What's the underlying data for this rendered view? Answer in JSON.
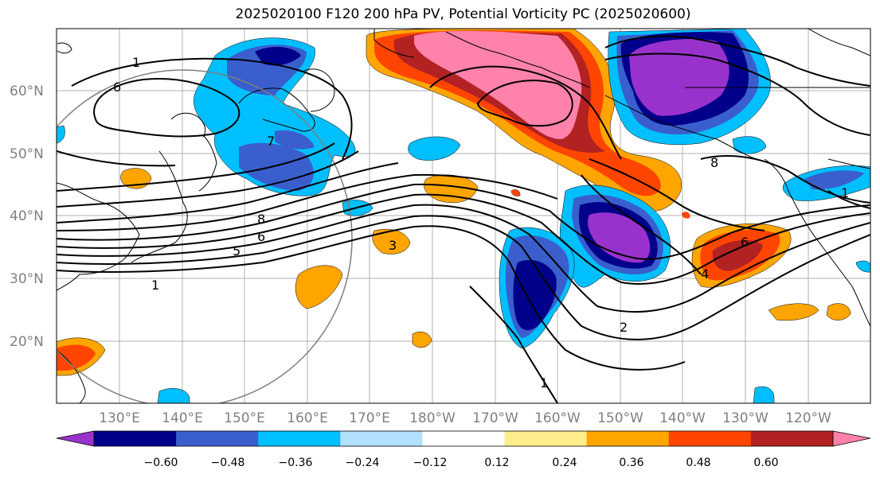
{
  "title": "2025020100 F120 200 hPa PV, Potential Vorticity PC (2025020600)",
  "lat_labels": [
    "60°N",
    "50°N",
    "40°N",
    "30°N",
    "20°N"
  ],
  "lon_labels": [
    "130°E",
    "140°E",
    "150°E",
    "160°E",
    "170°E",
    "180°W",
    "170°W",
    "160°W",
    "150°W",
    "140°W",
    "130°W",
    "120°W"
  ],
  "contour_labels": [
    "1",
    "6",
    "7",
    "8",
    "6",
    "5",
    "1",
    "3",
    "2",
    "1",
    "8",
    "6",
    "4",
    "1"
  ],
  "colorbar": {
    "ticks": [
      "−0.60",
      "−0.48",
      "−0.36",
      "−0.24",
      "−0.12",
      "0.12",
      "0.24",
      "0.36",
      "0.48",
      "0.60"
    ],
    "colors": [
      "#9932cc",
      "#00008b",
      "#3a5fcd",
      "#00bfff",
      "#b3e0ff",
      "#ffffff",
      "#ffec8b",
      "#ffa500",
      "#ff4500",
      "#b22222",
      "#ff82ab"
    ]
  }
}
